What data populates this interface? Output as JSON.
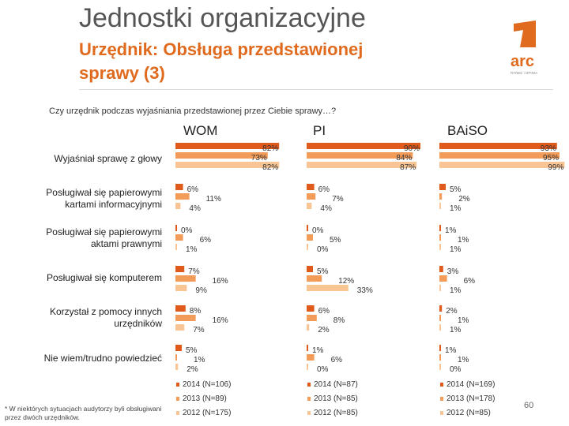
{
  "header": {
    "title": "Jednostki organizacyjne",
    "subtitle_line1": "Urzędnik: Obsługa przedstawionej",
    "subtitle_line2": "sprawy (3)",
    "logo_text": "arc",
    "logo_subtext": "RYNEK i OPINIA"
  },
  "question": "Czy urzędnik podczas wyjaśniania przedstawionej przez Ciebie sprawy…?",
  "footnote": "* W niektórych sytuacjach audytorzy byli obsługiwani przez dwóch urzędników.",
  "page_number": "60",
  "chart_data": {
    "type": "bar",
    "orientation": "horizontal",
    "title": "Czy urzędnik podczas wyjaśniania przedstawionej przez Ciebie sprawy…?",
    "colors": {
      "2014": "#E05A1B",
      "2013": "#F39B58",
      "2012": "#F9C594"
    },
    "categories": [
      "Wyjaśniał sprawę z głowy",
      "Posługiwał się papierowymi kartami informacyjnymi",
      "Posługiwał się papierowymi aktami prawnymi",
      "Posługiwał się komputerem",
      "Korzystał z pomocy innych urzędników",
      "Nie wiem/trudno powiedzieć"
    ],
    "category_lines": [
      [
        "Wyjaśniał sprawę z głowy"
      ],
      [
        "Posługiwał się papierowymi",
        "kartami informacyjnymi"
      ],
      [
        "Posługiwał się papierowymi",
        "aktami prawnymi"
      ],
      [
        "Posługiwał się komputerem"
      ],
      [
        "Korzystał z pomocy innych",
        "urzędników"
      ],
      [
        "Nie wiem/trudno powiedzieć"
      ]
    ],
    "panels": [
      {
        "name": "WOM",
        "legend": [
          "2014 (N=106)",
          "2013 (N=89)",
          "2012 (N=175)"
        ],
        "series": [
          {
            "name": "2014",
            "values": [
              82,
              6,
              0,
              7,
              8,
              5
            ]
          },
          {
            "name": "2013",
            "values": [
              73,
              11,
              6,
              16,
              16,
              1
            ]
          },
          {
            "name": "2012",
            "values": [
              82,
              4,
              1,
              9,
              7,
              2
            ]
          }
        ]
      },
      {
        "name": "PI",
        "legend": [
          "2014 (N=87)",
          "2013 (N=85)",
          "2012 (N=85)"
        ],
        "series": [
          {
            "name": "2014",
            "values": [
              90,
              6,
              0,
              5,
              6,
              1
            ]
          },
          {
            "name": "2013",
            "values": [
              84,
              7,
              5,
              12,
              8,
              6
            ]
          },
          {
            "name": "2012",
            "values": [
              87,
              4,
              0,
              33,
              2,
              0
            ]
          }
        ]
      },
      {
        "name": "BAiSO",
        "legend": [
          "2014 (N=169)",
          "2013 (N=178)",
          "2012 (N=85)"
        ],
        "series": [
          {
            "name": "2014",
            "values": [
              93,
              5,
              1,
              3,
              2,
              1
            ]
          },
          {
            "name": "2013",
            "values": [
              95,
              2,
              1,
              6,
              1,
              1
            ]
          },
          {
            "name": "2012",
            "values": [
              99,
              1,
              1,
              1,
              1,
              0
            ]
          }
        ]
      }
    ]
  }
}
